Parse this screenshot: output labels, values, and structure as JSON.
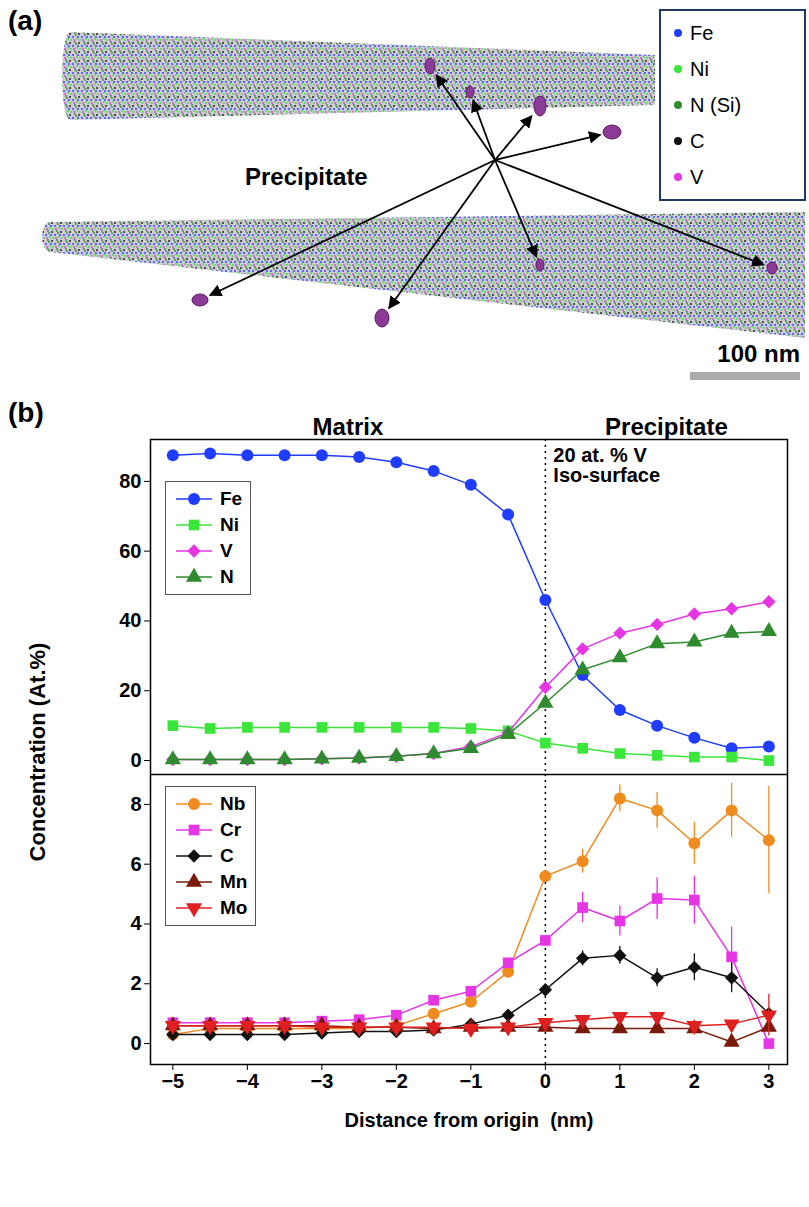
{
  "panel_a": {
    "label": "(a)",
    "legend": [
      {
        "name": "Fe",
        "color": "#1f3cff"
      },
      {
        "name": "Ni",
        "color": "#39e639"
      },
      {
        "name": "N (Si)",
        "color": "#2e8b2e"
      },
      {
        "name": "C",
        "color": "#111111"
      },
      {
        "name": "V",
        "color": "#e535e5"
      }
    ],
    "annotation": "Precipitate",
    "scale_bar": "100 nm"
  },
  "panel_b": {
    "label": "(b)",
    "ylabel": "Concentration (At.%)"
  },
  "chart_data": [
    {
      "type": "line",
      "x": [
        -5,
        -4.5,
        -4,
        -3.5,
        -3,
        -2.5,
        -2,
        -1.5,
        -1,
        -0.5,
        0,
        0.5,
        1,
        1.5,
        2,
        2.5,
        3
      ],
      "xlim": [
        -5.3,
        3.25
      ],
      "ylim": [
        -4,
        92
      ],
      "yticks": [
        0,
        20,
        40,
        60,
        80
      ],
      "tick_labels": "y",
      "legend": "upper left",
      "annotations": [
        "Matrix",
        "Precipitate"
      ],
      "vline": {
        "x": 0,
        "line_style": "dotted",
        "label": [
          "20 at. % V",
          "Iso-surface"
        ]
      },
      "series": [
        {
          "name": "Fe",
          "color": "#1f3cff",
          "marker": "circle",
          "values": [
            87.5,
            88,
            87.5,
            87.5,
            87.5,
            87,
            85.5,
            83,
            79,
            70.5,
            46,
            24.5,
            14.5,
            10,
            6.5,
            3.5,
            4
          ]
        },
        {
          "name": "Ni",
          "color": "#39e639",
          "marker": "square",
          "values": [
            10,
            9.2,
            9.5,
            9.5,
            9.5,
            9.5,
            9.5,
            9.5,
            9.2,
            8.5,
            5,
            3.5,
            2,
            1.5,
            1,
            1,
            0
          ]
        },
        {
          "name": "V",
          "color": "#e535e5",
          "marker": "diamond",
          "values": [
            0.3,
            0.3,
            0.3,
            0.3,
            0.5,
            0.7,
            1.2,
            2,
            4,
            8,
            21,
            32,
            36.5,
            39,
            42,
            43.5,
            45.5
          ]
        },
        {
          "name": "N",
          "color": "#2e8b2e",
          "marker": "triangle",
          "values": [
            0.3,
            0.3,
            0.3,
            0.3,
            0.5,
            0.7,
            1.2,
            2,
            3.5,
            7.5,
            16.5,
            26,
            29.5,
            33.5,
            34,
            36.5,
            37
          ]
        }
      ]
    },
    {
      "type": "line",
      "x": [
        -5,
        -4.5,
        -4,
        -3.5,
        -3,
        -2.5,
        -2,
        -1.5,
        -1,
        -0.5,
        0,
        0.5,
        1,
        1.5,
        2,
        2.5,
        3
      ],
      "xlim": [
        -5.3,
        3.25
      ],
      "xticks": [
        -5,
        -4,
        -3,
        -2,
        -1,
        0,
        1,
        2,
        3
      ],
      "xlabel": "Distance from origin  (nm)",
      "ylim": [
        -0.7,
        9
      ],
      "yticks": [
        0,
        2,
        4,
        6,
        8
      ],
      "legend": "upper left",
      "vline": {
        "x": 0,
        "line_style": "dotted"
      },
      "series": [
        {
          "name": "Nb",
          "color": "#f08c1e",
          "marker": "circle",
          "values": [
            0.3,
            0.5,
            0.5,
            0.5,
            0.5,
            0.5,
            0.6,
            1,
            1.4,
            2.4,
            5.6,
            6.1,
            8.2,
            7.8,
            6.7,
            7.8,
            6.8
          ],
          "errors": [
            null,
            null,
            null,
            null,
            null,
            null,
            null,
            null,
            null,
            null,
            null,
            0.4,
            0.45,
            0.6,
            0.7,
            0.9,
            1.8
          ]
        },
        {
          "name": "Cr",
          "color": "#e535e5",
          "marker": "square",
          "values": [
            0.7,
            0.7,
            0.7,
            0.7,
            0.75,
            0.8,
            0.95,
            1.45,
            1.75,
            2.7,
            3.45,
            4.55,
            4.1,
            4.85,
            4.8,
            2.9,
            0
          ],
          "errors": [
            null,
            null,
            null,
            null,
            null,
            null,
            null,
            null,
            null,
            null,
            null,
            0.5,
            0.5,
            0.7,
            0.8,
            1,
            null
          ]
        },
        {
          "name": "C",
          "color": "#111111",
          "marker": "diamond",
          "values": [
            0.3,
            0.3,
            0.3,
            0.3,
            0.35,
            0.4,
            0.4,
            0.45,
            0.65,
            0.95,
            1.8,
            2.85,
            2.95,
            2.2,
            2.55,
            2.2,
            1
          ],
          "errors": [
            null,
            null,
            null,
            null,
            null,
            null,
            null,
            null,
            null,
            null,
            null,
            0.25,
            0.3,
            0.3,
            0.45,
            0.5,
            null
          ]
        },
        {
          "name": "Mn",
          "color": "#7a1a0a",
          "marker": "triangle",
          "values": [
            0.6,
            0.6,
            0.6,
            0.6,
            0.6,
            0.55,
            0.55,
            0.5,
            0.55,
            0.55,
            0.55,
            0.5,
            0.5,
            0.5,
            0.5,
            0.05,
            0.55
          ]
        },
        {
          "name": "Mo",
          "color": "#e02020",
          "marker": "triangle-down",
          "values": [
            0.6,
            0.6,
            0.6,
            0.6,
            0.55,
            0.55,
            0.55,
            0.55,
            0.5,
            0.55,
            0.7,
            0.8,
            0.9,
            0.9,
            0.6,
            0.65,
            0.95
          ],
          "errors": [
            null,
            null,
            null,
            null,
            null,
            null,
            null,
            null,
            null,
            null,
            null,
            null,
            null,
            null,
            null,
            null,
            0.7
          ]
        }
      ]
    }
  ]
}
